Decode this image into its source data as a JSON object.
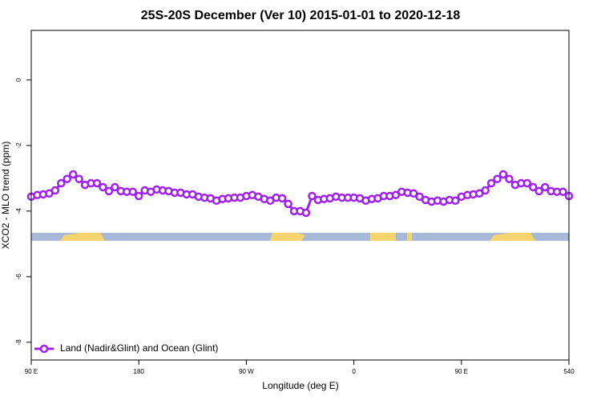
{
  "chart_data": {
    "type": "line",
    "title": "25S-20S December (Ver 10)   2015-01-01 to 2020-12-18",
    "x_label": "Longitude (deg E)",
    "y_label": "XCO2 - MLO trend (ppm)",
    "xlim": [
      90,
      540
    ],
    "ylim": [
      1.51,
      -8.54
    ],
    "xticks": [
      {
        "value": 90,
        "label": "90 E"
      },
      180,
      {
        "value": 270,
        "label": "90 W"
      },
      {
        "value": 360,
        "label": "0"
      },
      {
        "value": 450,
        "label": "90 E"
      },
      540
    ],
    "yticks": [
      0,
      -2,
      -4,
      -6,
      -8
    ],
    "legend": "bottom-left",
    "x": [
      90,
      95,
      100,
      105,
      110,
      115,
      120,
      125,
      130,
      135,
      140,
      145,
      150,
      155,
      160,
      165,
      170,
      175,
      180,
      185,
      190,
      195,
      200,
      205,
      210,
      215,
      220,
      225,
      230,
      235,
      240,
      245,
      250,
      255,
      260,
      265,
      270,
      275,
      280,
      285,
      290,
      295,
      300,
      305,
      310,
      315,
      320,
      325,
      330,
      335,
      340,
      345,
      350,
      355,
      360,
      365,
      370,
      375,
      380,
      385,
      390,
      395,
      400,
      405,
      410,
      415,
      420,
      425,
      430,
      435,
      440,
      445,
      450,
      455,
      460,
      465,
      470,
      475,
      480,
      485,
      490,
      495,
      500,
      505,
      510,
      515,
      520,
      525,
      530,
      535,
      540
    ],
    "series": [
      {
        "name": "Land (Nadir&Glint) and Ocean (Glint)",
        "color": "#a020f0",
        "values": [
          -3.56,
          -3.51,
          -3.49,
          -3.46,
          -3.37,
          -3.15,
          -3.02,
          -2.88,
          -3.02,
          -3.2,
          -3.15,
          -3.15,
          -3.27,
          -3.39,
          -3.27,
          -3.39,
          -3.41,
          -3.41,
          -3.54,
          -3.37,
          -3.41,
          -3.34,
          -3.37,
          -3.39,
          -3.44,
          -3.44,
          -3.49,
          -3.49,
          -3.56,
          -3.59,
          -3.61,
          -3.68,
          -3.63,
          -3.61,
          -3.59,
          -3.59,
          -3.54,
          -3.51,
          -3.56,
          -3.63,
          -3.68,
          -3.59,
          -3.61,
          -3.78,
          -4.0,
          -4.0,
          -4.05,
          -3.54,
          -3.66,
          -3.63,
          -3.61,
          -3.56,
          -3.59,
          -3.59,
          -3.59,
          -3.61,
          -3.68,
          -3.63,
          -3.61,
          -3.54,
          -3.54,
          -3.51,
          -3.41,
          -3.44,
          -3.46,
          -3.56,
          -3.66,
          -3.71,
          -3.68,
          -3.71,
          -3.66,
          -3.68,
          -3.56,
          -3.51,
          -3.49,
          -3.46,
          -3.37,
          -3.15,
          -3.02,
          -2.88,
          -3.02,
          -3.2,
          -3.15,
          -3.15,
          -3.27,
          -3.39,
          -3.27,
          -3.39,
          -3.41,
          -3.41,
          -3.54
        ]
      }
    ]
  }
}
